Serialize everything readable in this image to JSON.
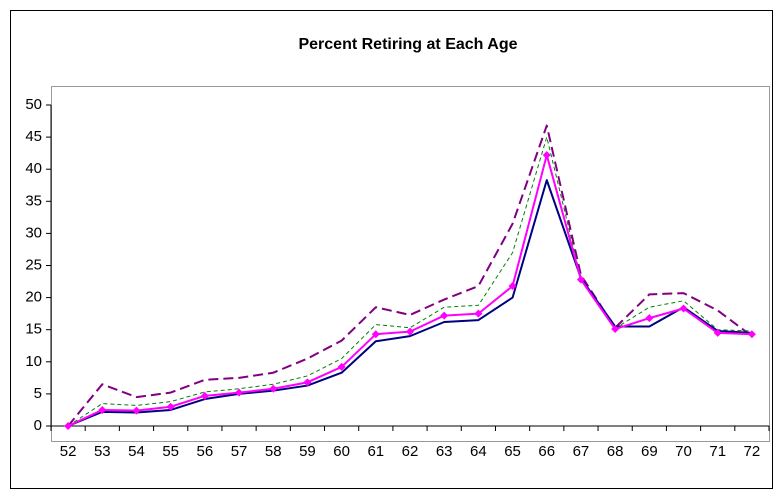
{
  "chart_data": {
    "type": "line",
    "title": "Percent Retiring at Each Age",
    "categories": [
      "52",
      "53",
      "54",
      "55",
      "56",
      "57",
      "58",
      "59",
      "60",
      "61",
      "62",
      "63",
      "64",
      "65",
      "66",
      "67",
      "68",
      "69",
      "70",
      "71",
      "72"
    ],
    "series": [
      {
        "color": "#800080",
        "dash": "long",
        "values": [
          0,
          6.5,
          4.5,
          5.2,
          7.2,
          7.5,
          8.3,
          10.5,
          13.3,
          18.5,
          17.3,
          19.7,
          21.8,
          31.5,
          46.8,
          23.5,
          15.3,
          20.5,
          20.7,
          18,
          14
        ]
      },
      {
        "color": "#008000",
        "dash": "short",
        "values": [
          0,
          3.5,
          3.2,
          3.8,
          5.3,
          5.8,
          6.5,
          7.8,
          10.5,
          15.8,
          15.3,
          18.5,
          18.8,
          27,
          45,
          23,
          15.2,
          18.5,
          19.5,
          15,
          14.8
        ]
      },
      {
        "color": "#000080",
        "values": [
          0,
          2.2,
          2.1,
          2.5,
          4.2,
          5,
          5.5,
          6.3,
          8.3,
          13.2,
          14,
          16.2,
          16.5,
          20,
          38.3,
          23,
          15.5,
          15.5,
          18.5,
          14.8,
          14.5
        ]
      },
      {
        "color": "#ff00ff",
        "marker": "diamond",
        "values": [
          0,
          2.5,
          2.4,
          3,
          4.7,
          5.2,
          5.8,
          6.8,
          9.2,
          14.3,
          14.7,
          17.2,
          17.5,
          21.8,
          42.2,
          22.8,
          15.1,
          16.8,
          18.3,
          14.5,
          14.3
        ]
      }
    ],
    "ylim": [
      0,
      50
    ],
    "yticks": [
      0,
      5,
      10,
      15,
      20,
      25,
      30,
      35,
      40,
      45,
      50
    ],
    "grid": false
  }
}
